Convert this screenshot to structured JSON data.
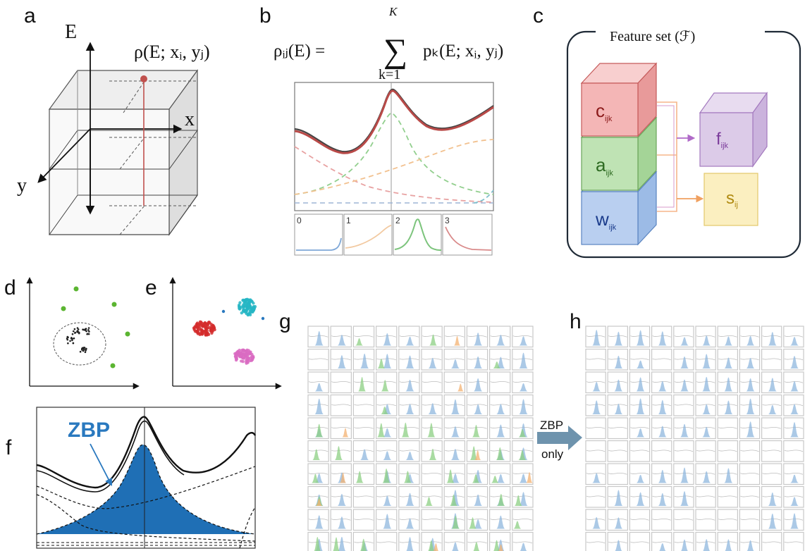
{
  "panels": {
    "a": {
      "letter": "a",
      "axis_e": "E",
      "axis_x": "x",
      "axis_y": "y",
      "rho_label": "ρ(E; xᵢ, yⱼ)"
    },
    "b": {
      "letter": "b",
      "eq_lhs": "ρᵢⱼ(E) =",
      "sum_sym": "∑",
      "sum_top": "K",
      "sum_bottom": "k=1",
      "eq_rhs": "pₖ(E; xᵢ, yⱼ)",
      "components": [
        {
          "index": "0",
          "color": "#7fa8d8"
        },
        {
          "index": "1",
          "color": "#f2c9a0"
        },
        {
          "index": "2",
          "color": "#7cc47c"
        },
        {
          "index": "3",
          "color": "#d98a8a"
        }
      ]
    },
    "c": {
      "letter": "c",
      "title": "Feature set (ℱ)",
      "cubes": [
        {
          "base": "c",
          "sub": "ijk",
          "face": "#f4b6b6",
          "top": "#f8cfcf",
          "side": "#e89a9a",
          "edge": "#c55a5a",
          "text": "#8b1a1a"
        },
        {
          "base": "a",
          "sub": "ijk",
          "face": "#bfe3b4",
          "top": "#d6edcf",
          "side": "#a4d497",
          "edge": "#6aa55a",
          "text": "#2e6b22"
        },
        {
          "base": "w",
          "sub": "ijk",
          "face": "#b9cff0",
          "top": "#d2e0f6",
          "side": "#9cbbe6",
          "edge": "#5a84c0",
          "text": "#1a3b8b"
        }
      ],
      "f_cube": {
        "base": "f",
        "sub": "ijk",
        "face": "#dccbe8",
        "text": "#7a3a9a"
      },
      "s_square": {
        "base": "s",
        "sub": "ij",
        "face": "#fbefc0",
        "text": "#b08a10"
      }
    },
    "d": {
      "letter": "d"
    },
    "e": {
      "letter": "e"
    },
    "f": {
      "letter": "f",
      "label": "ZBP",
      "label_color": "#2a79bf",
      "fill_color": "#1f6fb5"
    },
    "g": {
      "letter": "g"
    },
    "h": {
      "letter": "h"
    },
    "arrow": {
      "line1": "ZBP",
      "line2": "only",
      "color": "#6e93ad"
    }
  }
}
